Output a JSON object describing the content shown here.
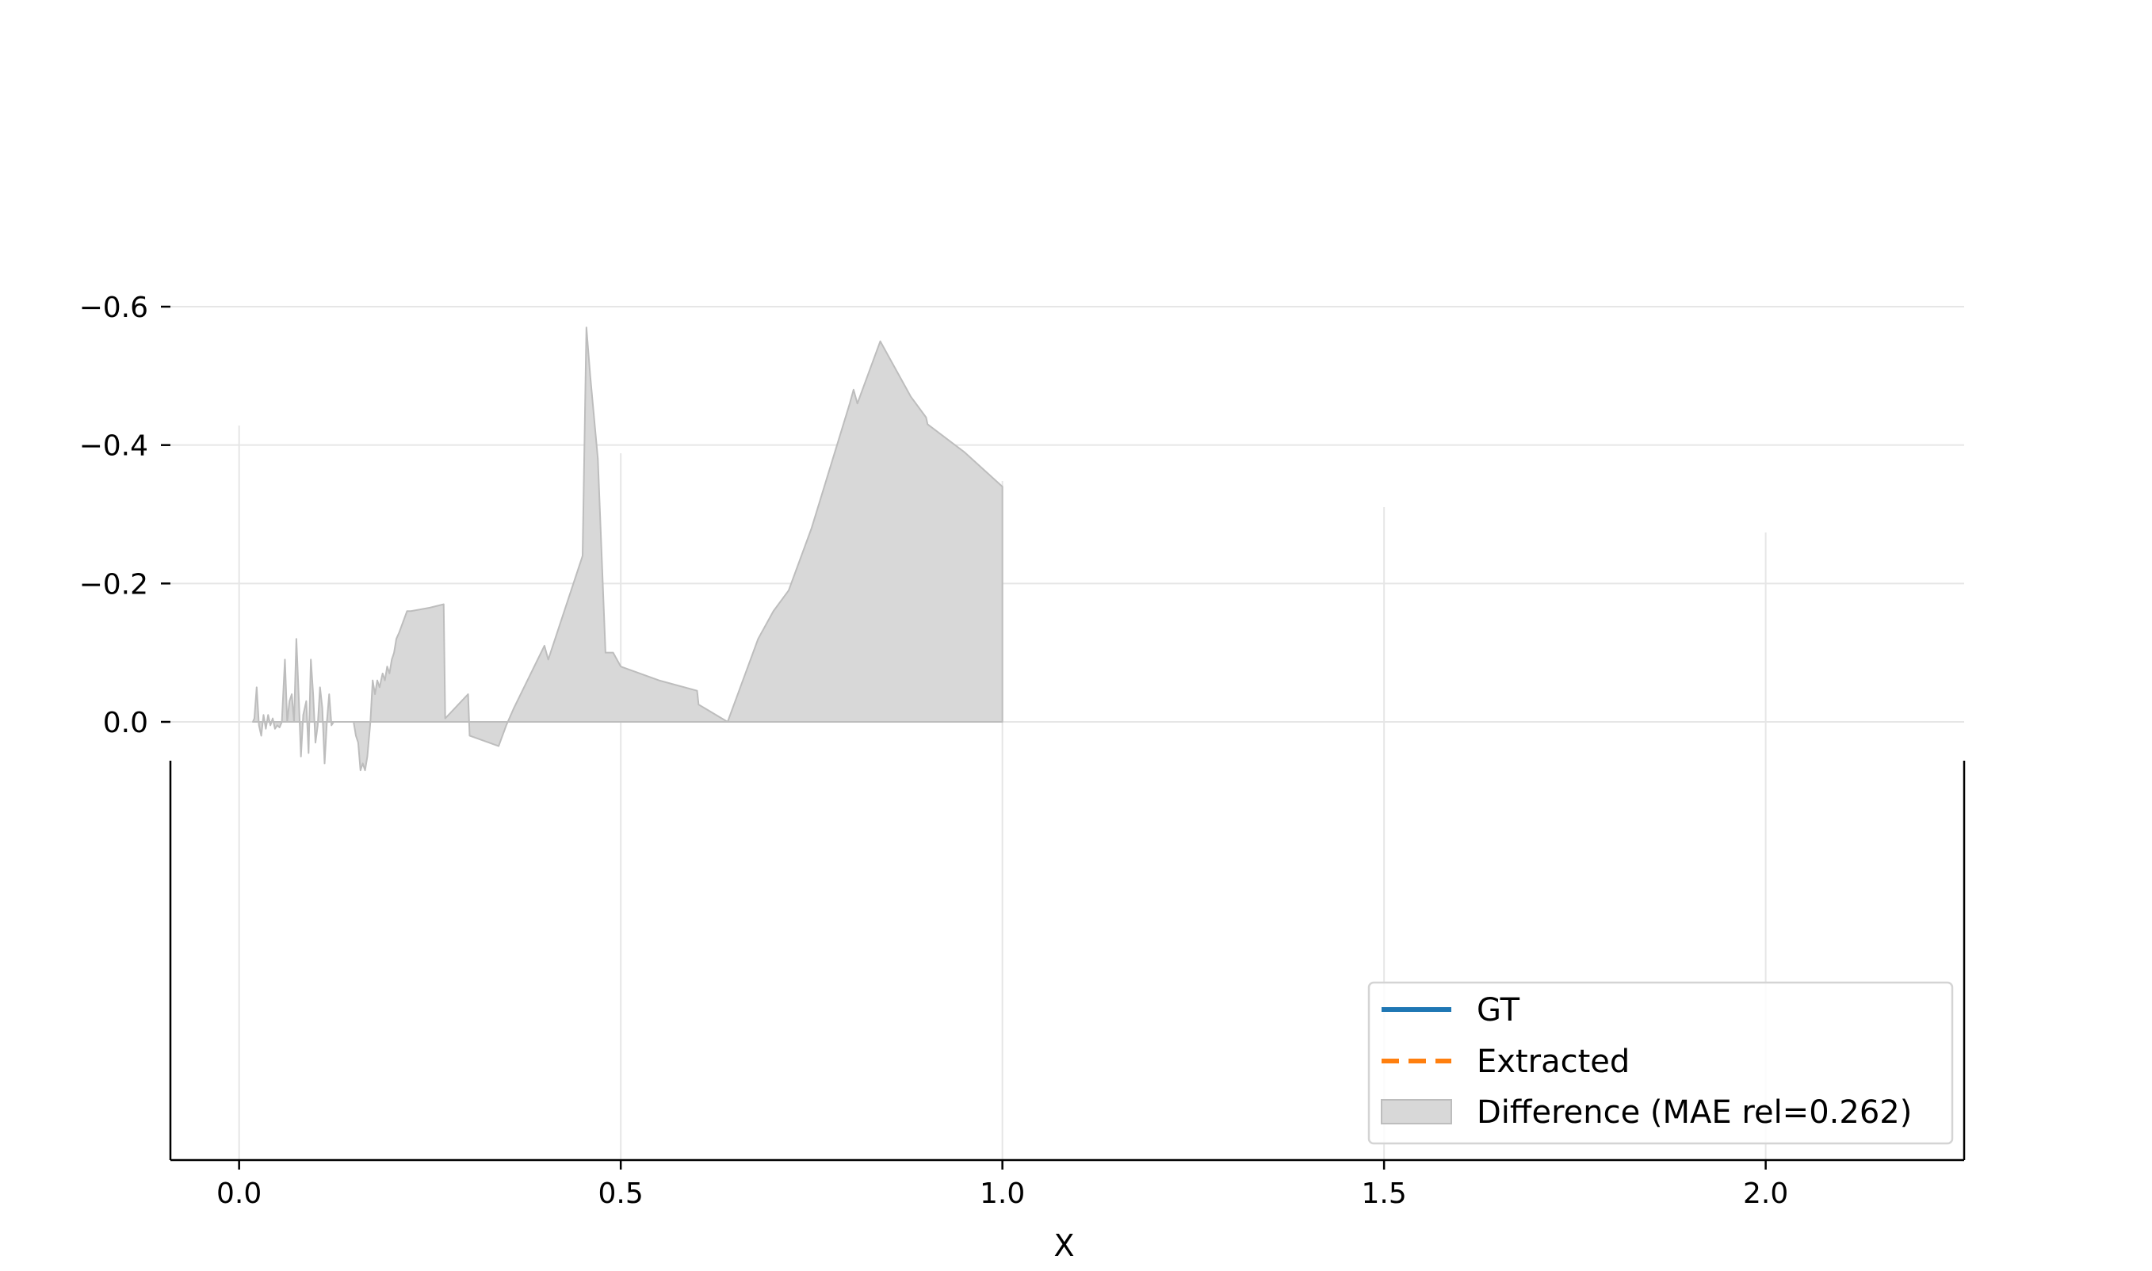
{
  "chart_data": {
    "type": "area",
    "title": "",
    "xlabel": "X",
    "ylabel": "",
    "xlim": [
      -0.09,
      2.26
    ],
    "ylim": [
      -0.635,
      0.0
    ],
    "x_ticks": [
      0.0,
      0.5,
      1.0,
      1.5,
      2.0
    ],
    "x_tick_labels": [
      "0.0",
      "0.5",
      "1.0",
      "1.5",
      "2.0"
    ],
    "y_ticks": [
      0.0,
      -0.2,
      -0.4,
      -0.6
    ],
    "y_tick_labels": [
      "0.0",
      "−0.2",
      "−0.4",
      "−0.6"
    ],
    "grid": true,
    "legend_position": "lower-right",
    "legend": [
      {
        "label": "GT",
        "style": "solid",
        "color": "#1f77b4"
      },
      {
        "label": "Extracted",
        "style": "dashed",
        "color": "#ff7f0e"
      },
      {
        "label": "Difference (MAE rel=0.262)",
        "style": "patch",
        "color": "#d8d8d8"
      }
    ],
    "series": [
      {
        "name": "Difference (MAE rel=0.262)",
        "color": "#d8d8d8",
        "edge_color": "#bdbdbd",
        "x": [
          0.018,
          0.02,
          0.023,
          0.026,
          0.029,
          0.032,
          0.035,
          0.038,
          0.041,
          0.044,
          0.047,
          0.05,
          0.053,
          0.056,
          0.06,
          0.063,
          0.066,
          0.069,
          0.072,
          0.075,
          0.078,
          0.081,
          0.084,
          0.088,
          0.091,
          0.094,
          0.097,
          0.1,
          0.103,
          0.106,
          0.109,
          0.112,
          0.115,
          0.118,
          0.121,
          0.124,
          0.127,
          0.13,
          0.134,
          0.137,
          0.14,
          0.143,
          0.146,
          0.15,
          0.153,
          0.156,
          0.159,
          0.162,
          0.165,
          0.168,
          0.172,
          0.175,
          0.178,
          0.181,
          0.184,
          0.188,
          0.191,
          0.194,
          0.197,
          0.2,
          0.203,
          0.206,
          0.21,
          0.22,
          0.225,
          0.25,
          0.268,
          0.27,
          0.3,
          0.302,
          0.34,
          0.35,
          0.36,
          0.4,
          0.405,
          0.45,
          0.455,
          0.46,
          0.47,
          0.48,
          0.49,
          0.495,
          0.5,
          0.55,
          0.6,
          0.602,
          0.64,
          0.65,
          0.68,
          0.7,
          0.72,
          0.75,
          0.8,
          0.805,
          0.81,
          0.84,
          0.88,
          0.9,
          0.902,
          0.95,
          1.0
        ],
        "y": [
          0.0,
          -0.005,
          -0.05,
          0.005,
          0.02,
          -0.01,
          0.01,
          -0.01,
          0.005,
          -0.005,
          0.01,
          0.005,
          0.008,
          0.0,
          -0.09,
          0.0,
          -0.03,
          -0.04,
          0.0,
          -0.12,
          -0.04,
          0.05,
          -0.01,
          -0.03,
          0.045,
          -0.09,
          -0.04,
          0.03,
          0.005,
          -0.05,
          -0.02,
          0.06,
          0.0,
          -0.04,
          0.005,
          0.0,
          0.0,
          0.0,
          0.0,
          0.0,
          0.0,
          0.0,
          0.0,
          0.0,
          0.02,
          0.03,
          0.07,
          0.06,
          0.07,
          0.05,
          0.0,
          -0.06,
          -0.04,
          -0.06,
          -0.05,
          -0.07,
          -0.06,
          -0.08,
          -0.07,
          -0.09,
          -0.1,
          -0.12,
          -0.13,
          -0.16,
          -0.16,
          -0.165,
          -0.17,
          -0.005,
          -0.04,
          0.02,
          0.035,
          0.005,
          -0.02,
          -0.11,
          -0.09,
          -0.24,
          -0.57,
          -0.5,
          -0.38,
          -0.1,
          -0.1,
          -0.09,
          -0.08,
          -0.06,
          -0.045,
          -0.025,
          0.0,
          -0.03,
          -0.12,
          -0.16,
          -0.19,
          -0.28,
          -0.46,
          -0.48,
          -0.46,
          -0.55,
          -0.47,
          -0.44,
          -0.43,
          -0.39,
          -0.34
        ]
      },
      {
        "name": "GT",
        "color": "#1f77b4",
        "x": [],
        "y": []
      },
      {
        "name": "Extracted",
        "color": "#ff7f0e",
        "x": [],
        "y": []
      }
    ]
  }
}
